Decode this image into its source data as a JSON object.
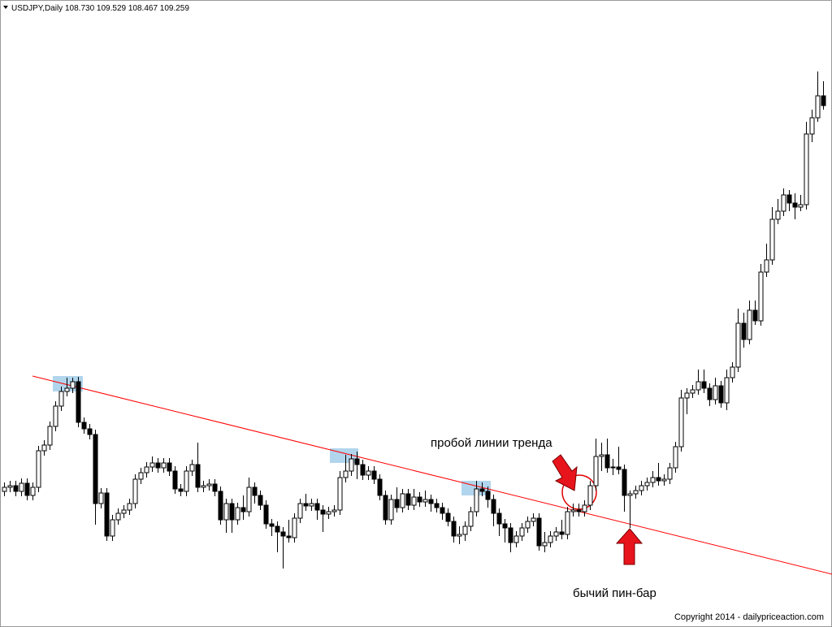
{
  "chart_data": {
    "type": "candlestick",
    "title": "USDJPY,Daily",
    "subtitle": "108.730 109.529 108.467 109.259",
    "annotations": [
      "пробой линии тренда",
      "бычий пин-бар"
    ],
    "credit": "Copyright 2014 - dailypriceaction.com",
    "up_color": "#ffffff",
    "down_color": "#000000",
    "wick_color": "#000000",
    "ylim": [
      96.6,
      112
    ],
    "open": [
      99.9,
      100,
      100.04,
      99.9,
      100.1,
      99.8,
      100,
      100.9,
      101.04,
      101.5,
      102,
      102.36,
      102.44,
      102.6,
      101.6,
      101.44,
      101.3,
      99.6,
      99.86,
      98.8,
      99.2,
      99.36,
      99.44,
      99.6,
      100.2,
      100.36,
      100.5,
      100.6,
      100.48,
      100.6,
      100.4,
      99.96,
      99.9,
      100.4,
      100.56,
      100,
      100.04,
      100.08,
      99.9,
      99.2,
      99.6,
      99.2,
      99.5,
      99.4,
      100,
      99.8,
      99.56,
      99.1,
      99.04,
      98.9,
      98.8,
      98.76,
      99.24,
      99.6,
      99.54,
      99.6,
      99.44,
      99.34,
      99.4,
      99.44,
      100.24,
      100.4,
      100.7,
      100.56,
      100.3,
      100.4,
      100.2,
      99.8,
      99.2,
      99.7,
      99.5,
      99.84,
      99.56,
      99.76,
      99.64,
      99.7,
      99.6,
      99.5,
      99.36,
      99.16,
      98.8,
      98.84,
      99.04,
      99.4,
      99.96,
      99.9,
      99.7,
      99.36,
      99.1,
      99,
      98.64,
      98.8,
      99,
      99.16,
      99.24,
      98.56,
      98.64,
      98.8,
      98.9,
      98.84,
      99.4,
      99.44,
      99.4,
      99.56,
      100.04,
      100.76,
      100.8,
      100.48,
      100.5,
      100.44,
      99.8,
      99.84,
      99.92,
      100.04,
      100.12,
      100.24,
      100.16,
      100.2,
      100.48,
      101,
      102.2,
      102.32,
      102.4,
      102.6,
      102.44,
      102.16,
      102.5,
      102.08,
      102.7,
      102.96,
      104.04,
      103.64,
      104.36,
      104.1,
      105.3,
      105.6,
      106.6,
      106.8,
      107.2,
      107,
      106.9,
      106.96,
      108.7,
      109.1,
      109.64
    ],
    "high": [
      100.12,
      100.16,
      100.16,
      100.22,
      100.22,
      100.12,
      101.02,
      101.16,
      101.62,
      102.12,
      102.48,
      102.7,
      102.7,
      102.72,
      101.72,
      101.56,
      101.42,
      99.98,
      99.98,
      99.32,
      99.48,
      99.56,
      99.72,
      100.32,
      100.48,
      100.62,
      100.76,
      100.72,
      100.72,
      100.72,
      100.52,
      100.08,
      100.52,
      100.68,
      101.1,
      100.16,
      100.2,
      100.2,
      100.02,
      99.72,
      99.72,
      99.62,
      99.8,
      100.24,
      100.12,
      99.92,
      99.68,
      99.22,
      99.16,
      99.02,
      99.2,
      99.36,
      99.72,
      99.84,
      99.72,
      99.72,
      99.56,
      99.52,
      99.56,
      100.4,
      100.8,
      100.82,
      100.88,
      100.68,
      100.52,
      100.52,
      100.32,
      99.92,
      99.82,
      100,
      99.96,
      99.96,
      99.96,
      99.88,
      99.92,
      99.82,
      99.72,
      99.62,
      99.48,
      99.28,
      99.04,
      99.16,
      99.52,
      100.16,
      100.12,
      100.02,
      99.82,
      99.48,
      99.22,
      99.12,
      98.92,
      99.12,
      99.28,
      99.36,
      99.36,
      98.9,
      98.92,
      99.02,
      99.2,
      99.52,
      99.6,
      99.6,
      99.68,
      100.16,
      101.2,
      101.1,
      101.2,
      100.7,
      101,
      100.56,
      99.92,
      100.04,
      100.16,
      100.24,
      100.4,
      100.6,
      100.32,
      100.6,
      101.12,
      102.4,
      102.44,
      102.52,
      102.9,
      102.9,
      102.56,
      102.7,
      102.62,
      102.9,
      103.08,
      104.4,
      104.3,
      104.6,
      104.6,
      105.5,
      106,
      106.9,
      107.1,
      107.36,
      107.32,
      107.24,
      107.2,
      109,
      109.3,
      110.24,
      110
    ],
    "low": [
      99.78,
      99.88,
      99.78,
      99.78,
      99.68,
      99.68,
      99.88,
      100.78,
      100.92,
      101.38,
      101.88,
      102.24,
      102.32,
      101.48,
      101.32,
      101.18,
      99.08,
      99.48,
      98.68,
      98.68,
      99.08,
      99.24,
      99.32,
      99.48,
      100.08,
      100.24,
      100.38,
      100.36,
      100.36,
      100.28,
      99.84,
      99.78,
      99.78,
      100.28,
      99.88,
      99.88,
      99.92,
      99.78,
      99.08,
      98.88,
      98.88,
      99.08,
      99.2,
      99.28,
      99.6,
      99.44,
      98.98,
      98.8,
      98.4,
      98,
      98.64,
      98.64,
      99.12,
      99.42,
      99.42,
      99.2,
      98.9,
      99.22,
      99.28,
      99.32,
      100.12,
      100.28,
      100.2,
      100.18,
      100.18,
      100.08,
      99.68,
      99.08,
      99.08,
      99.38,
      99.38,
      99.44,
      99.44,
      99.52,
      99.52,
      99.4,
      99.38,
      99.2,
      99.04,
      98.64,
      98.6,
      98.68,
      98.92,
      99.28,
      99.78,
      99.5,
      99.04,
      98.8,
      98.64,
      98.4,
      98.52,
      98.68,
      98.88,
      99.04,
      98.44,
      98.4,
      98.52,
      98.68,
      98.72,
      98.72,
      99.28,
      99.28,
      99.28,
      99.44,
      99.92,
      100.4,
      100.36,
      100.3,
      100.32,
      99.4,
      99,
      99.72,
      99.8,
      99.92,
      100,
      100.04,
      100.04,
      100.08,
      100.36,
      100.88,
      101.8,
      102.2,
      102.28,
      102.32,
      102,
      102.04,
      101.96,
      101.9,
      102.58,
      102.84,
      103.44,
      103.52,
      104,
      103.98,
      105.18,
      105.48,
      106.48,
      106.68,
      106.8,
      106.6,
      106.8,
      106.84,
      108.5,
      109,
      109.3
    ],
    "close": [
      100,
      100.04,
      99.9,
      100.1,
      99.8,
      100,
      100.9,
      101.04,
      101.5,
      102,
      102.36,
      102.44,
      102.6,
      101.6,
      101.44,
      101.3,
      99.6,
      99.86,
      98.8,
      99.2,
      99.36,
      99.44,
      99.6,
      100.2,
      100.36,
      100.5,
      100.6,
      100.48,
      100.6,
      100.4,
      99.96,
      99.9,
      100.4,
      100.56,
      100,
      100.04,
      100.08,
      99.9,
      99.2,
      99.6,
      99.2,
      99.5,
      99.4,
      100,
      99.8,
      99.56,
      99.1,
      99.04,
      98.9,
      98.8,
      98.76,
      99.24,
      99.6,
      99.54,
      99.6,
      99.44,
      99.34,
      99.4,
      99.44,
      100.24,
      100.4,
      100.7,
      100.56,
      100.3,
      100.4,
      100.2,
      99.8,
      99.2,
      99.7,
      99.5,
      99.84,
      99.56,
      99.76,
      99.64,
      99.7,
      99.6,
      99.5,
      99.36,
      99.16,
      98.8,
      98.84,
      99.04,
      99.4,
      99.96,
      99.9,
      99.7,
      99.36,
      99.1,
      99,
      98.64,
      98.8,
      99,
      99.16,
      99.24,
      98.56,
      98.64,
      98.8,
      98.9,
      98.84,
      99.4,
      99.44,
      99.4,
      99.56,
      100.04,
      100.76,
      100.8,
      100.48,
      100.5,
      100.44,
      99.8,
      99.84,
      99.92,
      100.04,
      100.12,
      100.24,
      100.16,
      100.2,
      100.48,
      101,
      102.2,
      102.32,
      102.4,
      102.6,
      102.44,
      102.16,
      102.5,
      102.08,
      102.7,
      102.96,
      104.04,
      103.64,
      104.36,
      104.1,
      105.3,
      105.6,
      106.6,
      106.8,
      107.2,
      107,
      106.9,
      106.96,
      108.7,
      109.1,
      109.64,
      109.4
    ]
  }
}
